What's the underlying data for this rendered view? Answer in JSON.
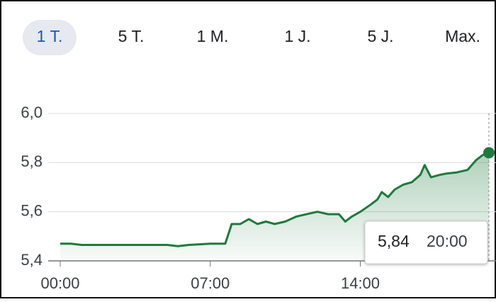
{
  "tabs": [
    "1 T.",
    "5 T.",
    "1 M.",
    "1 J.",
    "5 J.",
    "Max."
  ],
  "selected_tab": 0,
  "chart_data": {
    "type": "line",
    "color": "#1e7a3c",
    "x": [
      0,
      0.5,
      1,
      2,
      3,
      4,
      5,
      5.5,
      6,
      7,
      7.7,
      8,
      8.4,
      8.8,
      9.2,
      9.6,
      10,
      10.5,
      11,
      11.5,
      12,
      12.5,
      13,
      13.3,
      13.6,
      14,
      14.5,
      14.8,
      15,
      15.3,
      15.6,
      16,
      16.4,
      16.8,
      17,
      17.3,
      17.7,
      18,
      18.5,
      19,
      19.4,
      19.7,
      20
    ],
    "values": [
      5.47,
      5.47,
      5.465,
      5.465,
      5.465,
      5.465,
      5.465,
      5.46,
      5.465,
      5.47,
      5.47,
      5.55,
      5.55,
      5.57,
      5.55,
      5.56,
      5.55,
      5.56,
      5.58,
      5.59,
      5.6,
      5.59,
      5.59,
      5.56,
      5.58,
      5.6,
      5.63,
      5.65,
      5.68,
      5.66,
      5.69,
      5.71,
      5.72,
      5.75,
      5.79,
      5.74,
      5.75,
      5.755,
      5.76,
      5.77,
      5.81,
      5.83,
      5.84
    ],
    "xlim": [
      0,
      20
    ],
    "xticks": [
      {
        "value": 0,
        "label": "00:00"
      },
      {
        "value": 7,
        "label": "07:00"
      },
      {
        "value": 14,
        "label": "14:00"
      }
    ],
    "ylim": [
      5.4,
      6.0
    ],
    "yticks": [
      {
        "value": 5.4,
        "label": "5,4"
      },
      {
        "value": 5.6,
        "label": "5,6"
      },
      {
        "value": 5.8,
        "label": "5,8"
      },
      {
        "value": 6.0,
        "label": "6,0"
      }
    ],
    "grid": true,
    "tooltip": {
      "value": "5,84",
      "time": "20:00"
    }
  }
}
